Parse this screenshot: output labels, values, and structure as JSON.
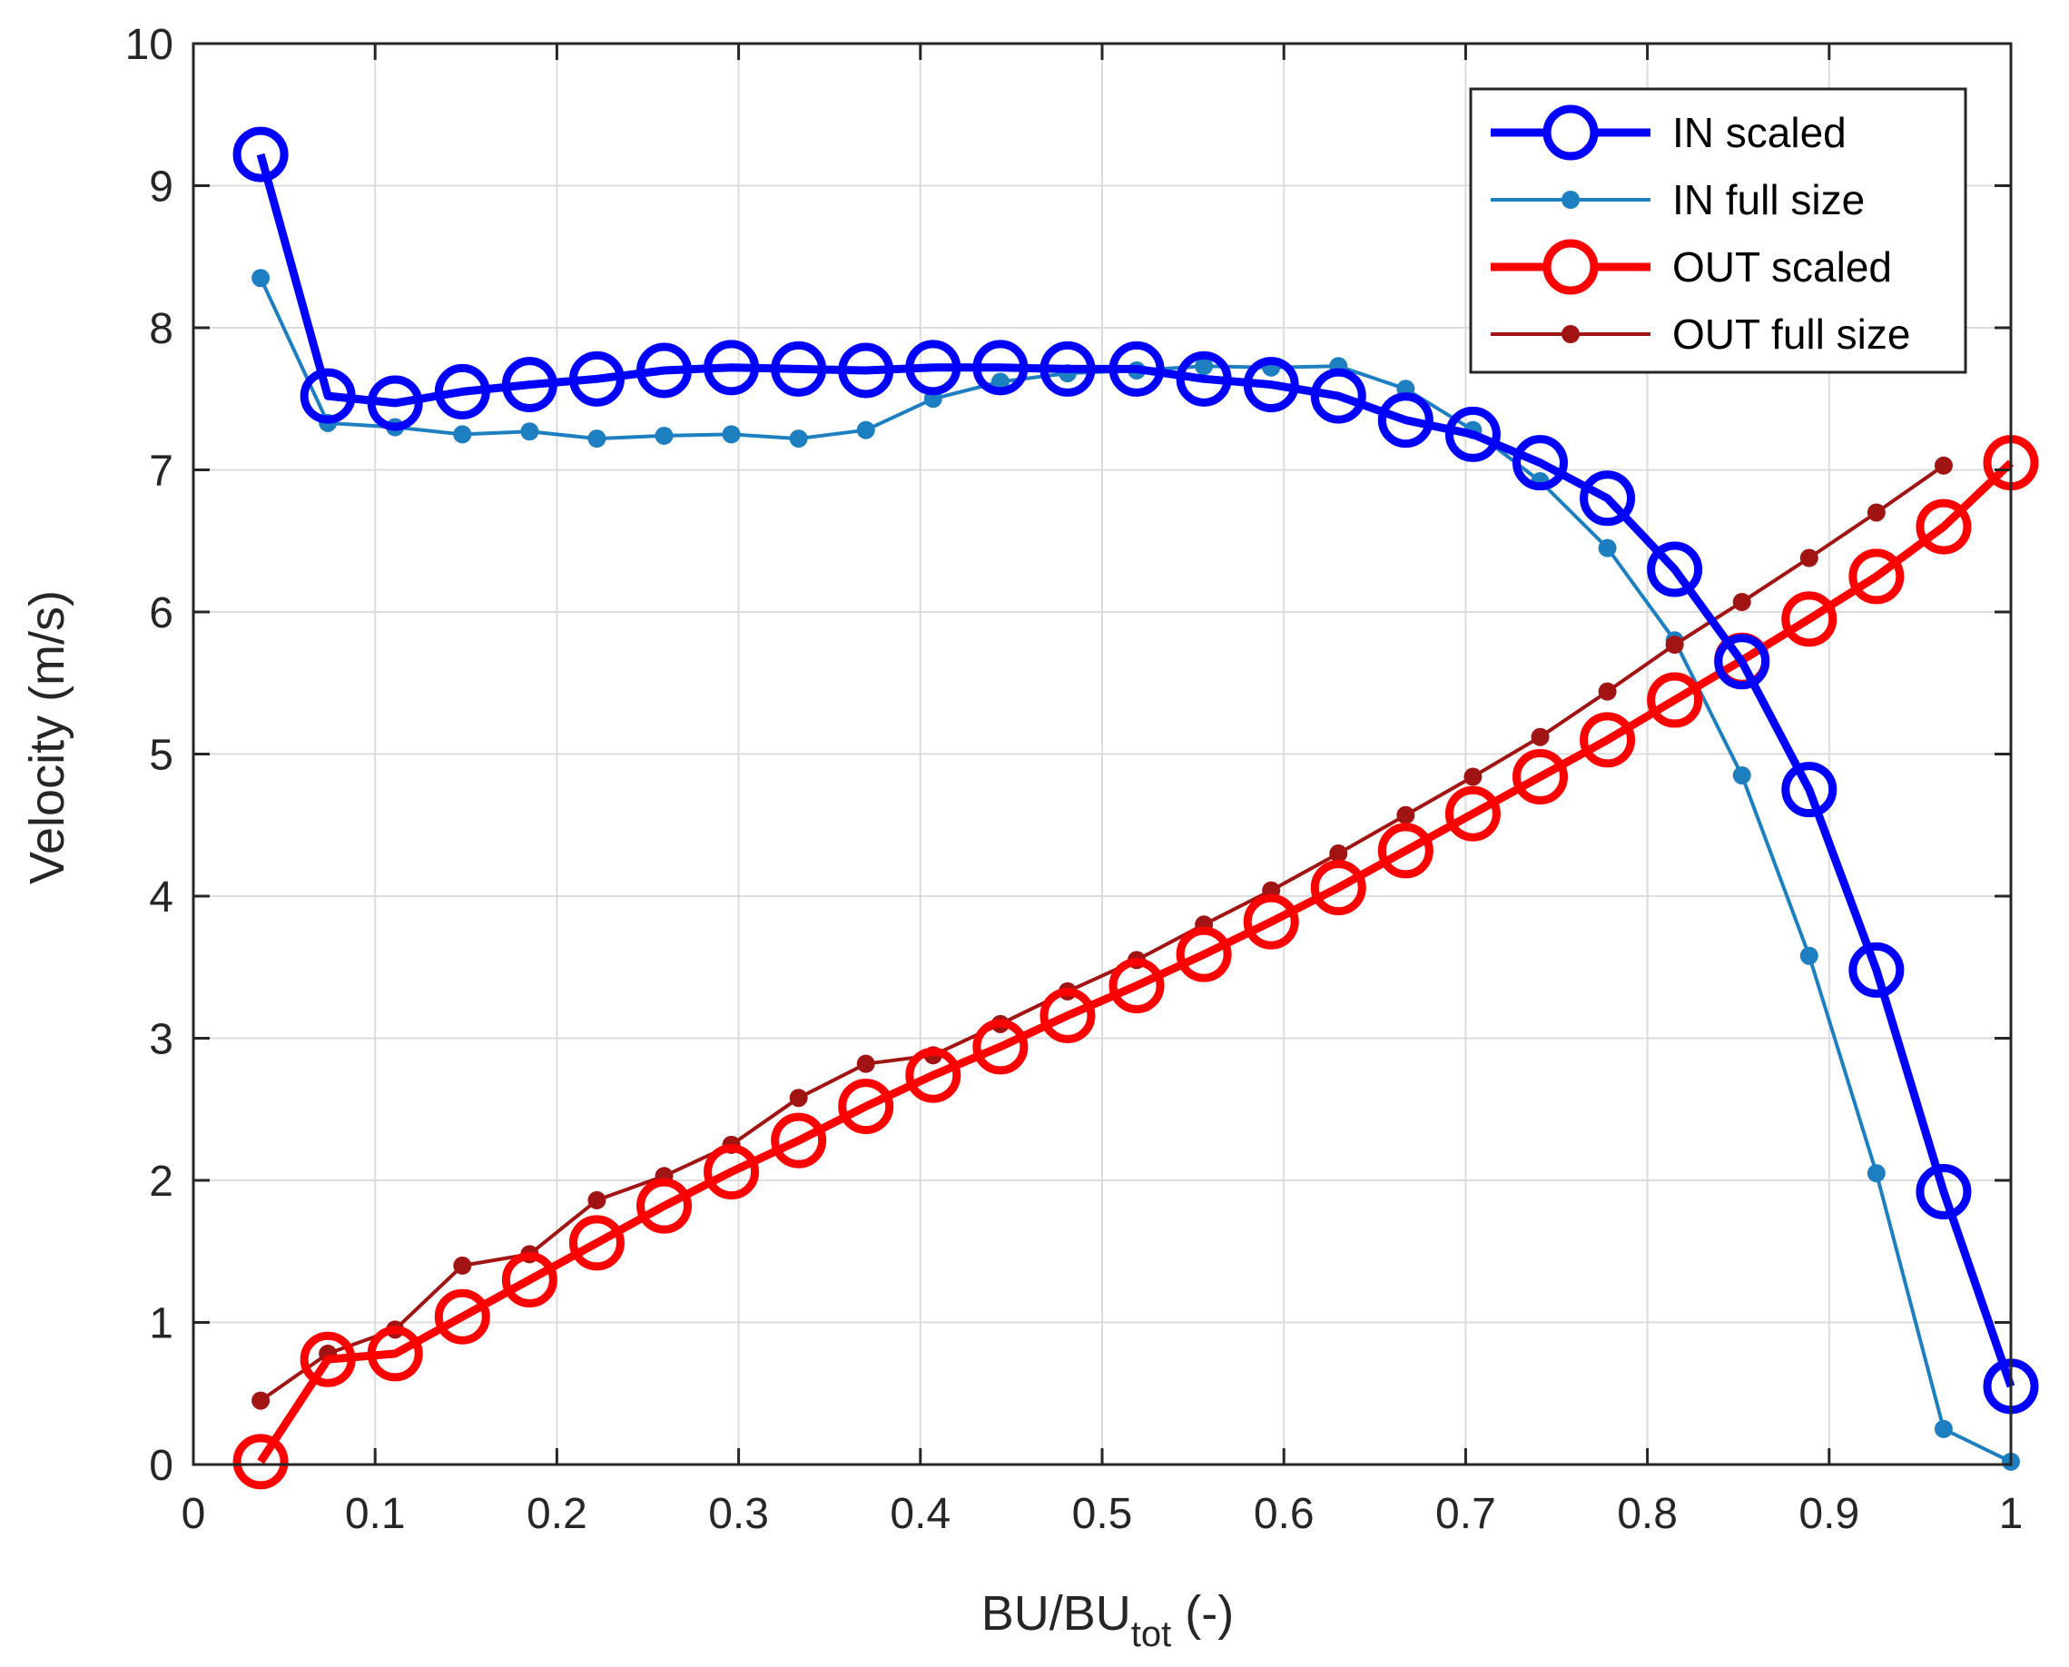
{
  "chart_data": {
    "type": "line",
    "title": "",
    "xlabel": {
      "main": "BU/BU",
      "sub": "tot",
      "suffix": " (-)"
    },
    "ylabel": "Velocity (m/s)",
    "xlim": [
      0,
      1
    ],
    "ylim": [
      0,
      10
    ],
    "xticks": [
      "0",
      "0.1",
      "0.2",
      "0.3",
      "0.4",
      "0.5",
      "0.6",
      "0.7",
      "0.8",
      "0.9",
      "1"
    ],
    "yticks": [
      "0",
      "1",
      "2",
      "3",
      "4",
      "5",
      "6",
      "7",
      "8",
      "9",
      "10"
    ],
    "grid": true,
    "legend_position": "top-right",
    "series": [
      {
        "name": "IN scaled",
        "color": "#0000ff",
        "marker": "circle-open",
        "x": [
          0.037,
          0.074,
          0.111,
          0.148,
          0.185,
          0.222,
          0.259,
          0.296,
          0.333,
          0.37,
          0.407,
          0.444,
          0.481,
          0.519,
          0.556,
          0.593,
          0.63,
          0.667,
          0.704,
          0.741,
          0.778,
          0.815,
          0.852,
          0.889,
          0.926,
          0.963,
          1.0
        ],
        "y": [
          9.22,
          7.52,
          7.47,
          7.55,
          7.6,
          7.64,
          7.7,
          7.72,
          7.71,
          7.7,
          7.72,
          7.72,
          7.71,
          7.71,
          7.64,
          7.6,
          7.52,
          7.35,
          7.25,
          7.05,
          6.8,
          6.3,
          5.65,
          4.75,
          3.48,
          1.92,
          0.55
        ]
      },
      {
        "name": "IN full size",
        "color": "#1e7fc0",
        "marker": "dot",
        "x": [
          0.037,
          0.074,
          0.111,
          0.148,
          0.185,
          0.222,
          0.259,
          0.296,
          0.333,
          0.37,
          0.407,
          0.444,
          0.481,
          0.519,
          0.556,
          0.593,
          0.63,
          0.667,
          0.704,
          0.741,
          0.778,
          0.815,
          0.852,
          0.889,
          0.926,
          0.963,
          1.0
        ],
        "y": [
          8.35,
          7.33,
          7.3,
          7.25,
          7.27,
          7.22,
          7.24,
          7.25,
          7.22,
          7.28,
          7.5,
          7.62,
          7.68,
          7.7,
          7.73,
          7.72,
          7.73,
          7.57,
          7.28,
          6.92,
          6.45,
          5.8,
          4.85,
          3.58,
          2.05,
          0.25,
          0.02
        ]
      },
      {
        "name": "OUT scaled",
        "color": "#ff0000",
        "marker": "circle-open",
        "x": [
          0.037,
          0.074,
          0.111,
          0.148,
          0.185,
          0.222,
          0.259,
          0.296,
          0.333,
          0.37,
          0.407,
          0.444,
          0.481,
          0.519,
          0.556,
          0.593,
          0.63,
          0.667,
          0.704,
          0.741,
          0.778,
          0.815,
          0.852,
          0.889,
          0.926,
          0.963,
          1.0
        ],
        "y": [
          0.02,
          0.74,
          0.78,
          1.04,
          1.3,
          1.56,
          1.82,
          2.06,
          2.28,
          2.52,
          2.74,
          2.94,
          3.16,
          3.37,
          3.59,
          3.82,
          4.06,
          4.32,
          4.58,
          4.84,
          5.1,
          5.38,
          5.66,
          5.95,
          6.25,
          6.6,
          7.05
        ]
      },
      {
        "name": "OUT full size",
        "color": "#a11414",
        "marker": "dot",
        "x": [
          0.037,
          0.074,
          0.111,
          0.148,
          0.185,
          0.222,
          0.259,
          0.296,
          0.333,
          0.37,
          0.407,
          0.444,
          0.481,
          0.519,
          0.556,
          0.593,
          0.63,
          0.667,
          0.704,
          0.741,
          0.778,
          0.815,
          0.852,
          0.889,
          0.926,
          0.963
        ],
        "y": [
          0.45,
          0.78,
          0.95,
          1.4,
          1.48,
          1.86,
          2.03,
          2.25,
          2.58,
          2.82,
          2.88,
          3.1,
          3.33,
          3.55,
          3.8,
          4.04,
          4.3,
          4.57,
          4.84,
          5.12,
          5.44,
          5.77,
          6.07,
          6.38,
          6.7,
          7.03
        ]
      }
    ]
  }
}
